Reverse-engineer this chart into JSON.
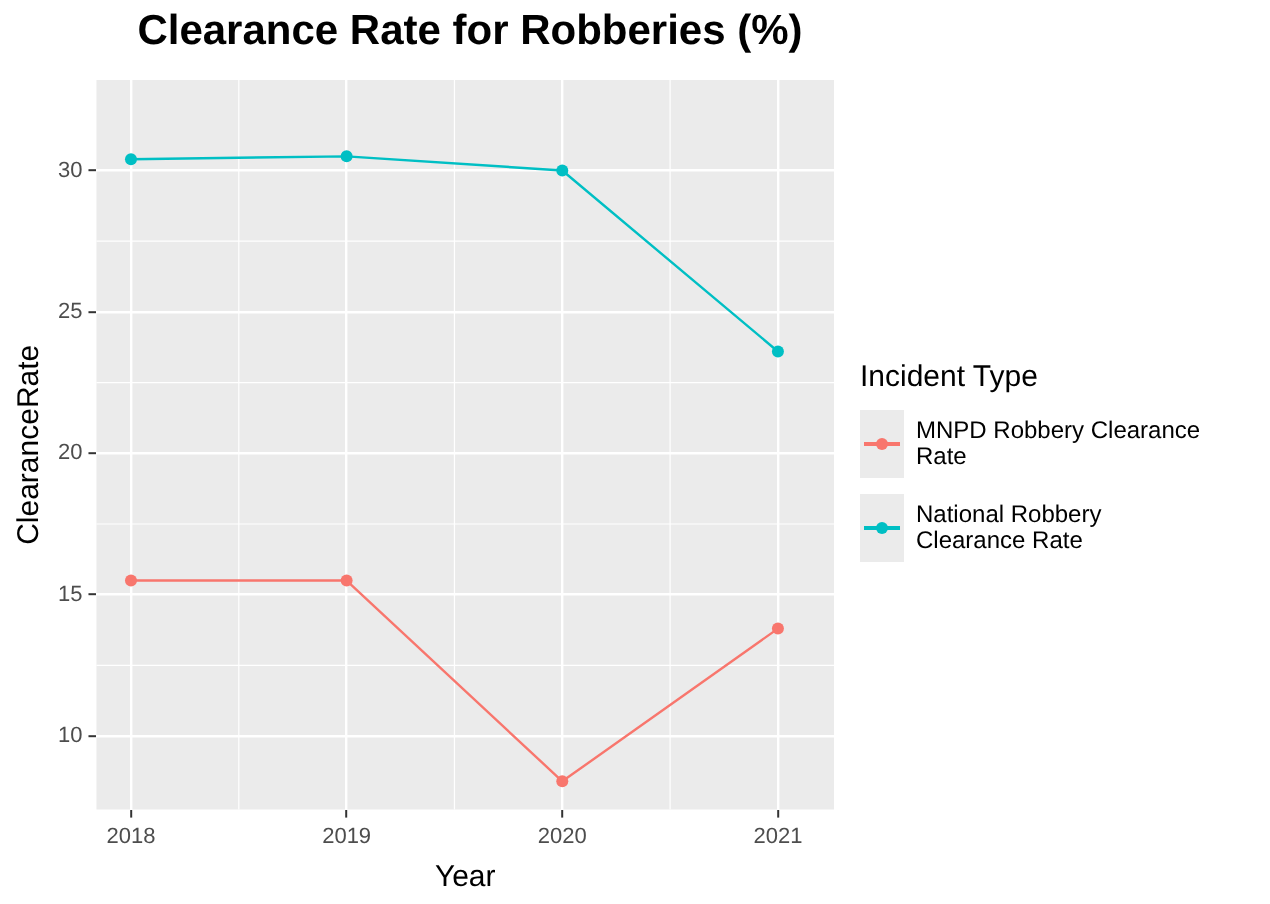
{
  "chart_data": {
    "type": "line",
    "title": "Clearance Rate for Robberies (%)",
    "xlabel": "Year",
    "ylabel": "ClearanceRate",
    "legend_title": "Incident Type",
    "x": [
      2018,
      2019,
      2020,
      2021
    ],
    "series": [
      {
        "name": "MNPD Robbery Clearance Rate",
        "color": "#f8766d",
        "values": [
          15.5,
          15.5,
          8.4,
          13.8
        ]
      },
      {
        "name": "National Robbery Clearance Rate",
        "color": "#00bfc4",
        "values": [
          30.4,
          30.5,
          30.0,
          23.6
        ]
      }
    ],
    "xlim": [
      2017.84,
      2021.26
    ],
    "xticks": [
      2018,
      2019,
      2020,
      2021
    ],
    "ylim": [
      7.4,
      33.2
    ],
    "yticks": [
      10,
      15,
      20,
      25,
      30
    ],
    "grid": true,
    "legend": "right",
    "marker": "circle",
    "line_style": "solid"
  }
}
